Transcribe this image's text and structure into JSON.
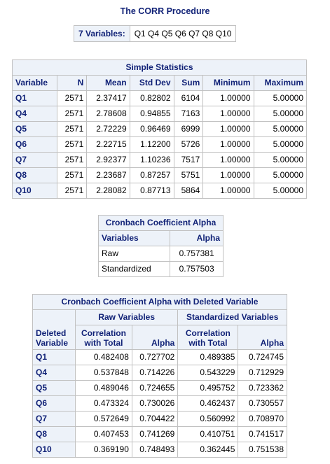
{
  "procedure_title": "The CORR Procedure",
  "variables_box": {
    "label": "7 Variables:",
    "list": "Q1 Q4 Q5 Q6 Q7 Q8 Q10"
  },
  "simple_statistics": {
    "title": "Simple Statistics",
    "columns": [
      "Variable",
      "N",
      "Mean",
      "Std Dev",
      "Sum",
      "Minimum",
      "Maximum"
    ],
    "rows": [
      [
        "Q1",
        "2571",
        "2.37417",
        "0.82802",
        "6104",
        "1.00000",
        "5.00000"
      ],
      [
        "Q4",
        "2571",
        "2.78608",
        "0.94855",
        "7163",
        "1.00000",
        "5.00000"
      ],
      [
        "Q5",
        "2571",
        "2.72229",
        "0.96469",
        "6999",
        "1.00000",
        "5.00000"
      ],
      [
        "Q6",
        "2571",
        "2.22715",
        "1.12200",
        "5726",
        "1.00000",
        "5.00000"
      ],
      [
        "Q7",
        "2571",
        "2.92377",
        "1.10236",
        "7517",
        "1.00000",
        "5.00000"
      ],
      [
        "Q8",
        "2571",
        "2.23687",
        "0.87257",
        "5751",
        "1.00000",
        "5.00000"
      ],
      [
        "Q10",
        "2571",
        "2.28082",
        "0.87713",
        "5864",
        "1.00000",
        "5.00000"
      ]
    ]
  },
  "cronbach_alpha": {
    "title": "Cronbach Coefficient Alpha",
    "columns": [
      "Variables",
      "Alpha"
    ],
    "rows": [
      [
        "Raw",
        "0.757381"
      ],
      [
        "Standardized",
        "0.757503"
      ]
    ]
  },
  "deleted_variable": {
    "title": "Cronbach Coefficient Alpha with Deleted Variable",
    "group_raw": "Raw Variables",
    "group_std": "Standardized Variables",
    "col_deleted_1": "Deleted",
    "col_deleted_2": "Variable",
    "col_corr_1": "Correlation",
    "col_corr_2": "with Total",
    "col_alpha": "Alpha",
    "rows": [
      [
        "Q1",
        "0.482408",
        "0.727702",
        "0.489385",
        "0.724745"
      ],
      [
        "Q4",
        "0.537848",
        "0.714226",
        "0.543229",
        "0.712929"
      ],
      [
        "Q5",
        "0.489046",
        "0.724655",
        "0.495752",
        "0.723362"
      ],
      [
        "Q6",
        "0.473324",
        "0.730026",
        "0.462437",
        "0.730557"
      ],
      [
        "Q7",
        "0.572649",
        "0.704422",
        "0.560992",
        "0.708970"
      ],
      [
        "Q8",
        "0.407453",
        "0.741269",
        "0.410751",
        "0.741517"
      ],
      [
        "Q10",
        "0.369190",
        "0.748493",
        "0.362445",
        "0.751538"
      ]
    ]
  }
}
